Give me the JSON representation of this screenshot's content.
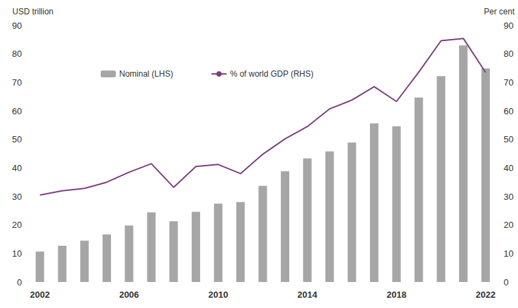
{
  "chart_data": {
    "type": "bar",
    "ylabel": "USD trillion",
    "y2label": "Per cent",
    "categories": [
      "2002",
      null,
      null,
      null,
      "2006",
      null,
      null,
      null,
      "2010",
      null,
      null,
      null,
      "2014",
      null,
      null,
      null,
      "2018",
      null,
      null,
      null,
      "2022"
    ],
    "series": [
      {
        "name": "Nominal (LHS)",
        "type": "bar",
        "color": "#a6a6a6",
        "values": [
          10.7,
          12.7,
          14.5,
          16.7,
          19.8,
          24.4,
          21.3,
          24.6,
          27.5,
          28.0,
          33.7,
          38.8,
          43.3,
          45.8,
          48.9,
          55.6,
          54.6,
          64.7,
          72.2,
          83.0,
          74.9
        ]
      },
      {
        "name": "% of world GDP (RHS)",
        "type": "line",
        "color": "#7b3f7f",
        "axis": "y2",
        "values": [
          30.5,
          32.0,
          32.8,
          35.0,
          38.5,
          41.5,
          33.2,
          40.5,
          41.2,
          38.0,
          44.8,
          50.2,
          54.5,
          60.7,
          63.8,
          68.5,
          63.3,
          73.6,
          84.6,
          85.4,
          73.5
        ]
      }
    ],
    "ylim": [
      0,
      90
    ],
    "yticks": [
      0,
      10,
      20,
      30,
      40,
      50,
      60,
      70,
      80,
      90
    ],
    "y2lim": [
      0,
      90
    ],
    "y2ticks": [
      0,
      10,
      20,
      30,
      40,
      50,
      60,
      70,
      80,
      90
    ],
    "grid": false,
    "legend": "upper left"
  }
}
